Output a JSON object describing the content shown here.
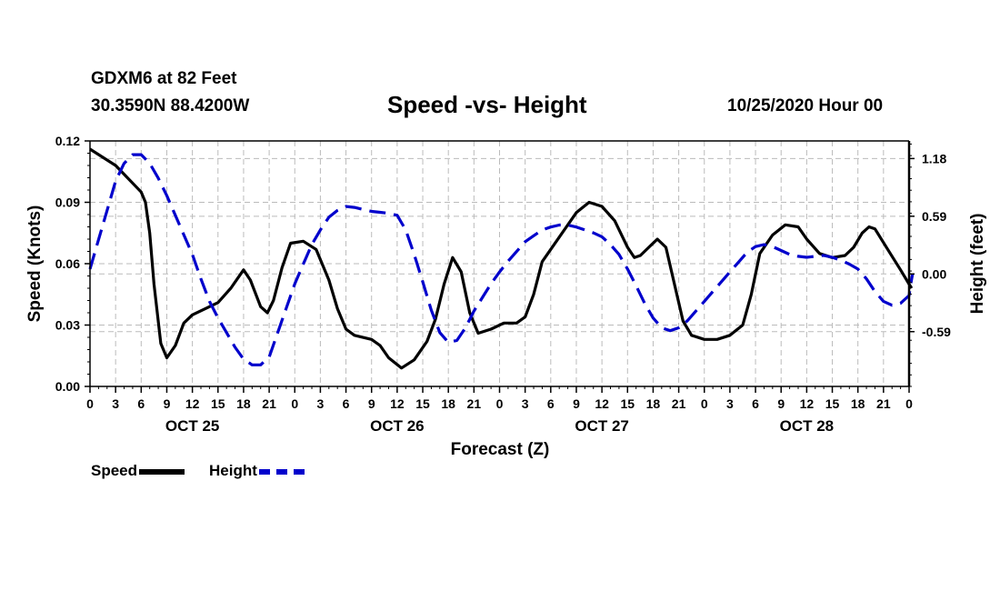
{
  "header": {
    "station": "GDXM6 at 82 Feet",
    "coords": "30.3590N 88.4200W",
    "title": "Speed -vs- Height",
    "run_time": "10/25/2020 Hour 00"
  },
  "colors": {
    "speed": "#000000",
    "height": "#0000cc",
    "grid": "#bbbbbb"
  },
  "chart_data": {
    "type": "line",
    "title": "Speed -vs- Height",
    "xlabel": "Forecast (Z)",
    "ylabel": "Speed (Knots)",
    "y2label": "Height (feet)",
    "xlim": [
      0,
      96
    ],
    "ylim": [
      0,
      0.12
    ],
    "y2lim": [
      -1.15,
      1.36
    ],
    "x_ticks": [
      0,
      3,
      6,
      9,
      12,
      15,
      18,
      21,
      24,
      27,
      30,
      33,
      36,
      39,
      42,
      45,
      48,
      51,
      54,
      57,
      60,
      63,
      66,
      69,
      72,
      75,
      78,
      81,
      84,
      87,
      90,
      93,
      96
    ],
    "x_tick_labels": [
      "0",
      "3",
      "6",
      "9",
      "12",
      "15",
      "18",
      "21",
      "0",
      "3",
      "6",
      "9",
      "12",
      "15",
      "18",
      "21",
      "0",
      "3",
      "6",
      "9",
      "12",
      "15",
      "18",
      "21",
      "0",
      "3",
      "6",
      "9",
      "12",
      "15",
      "18",
      "21",
      "0"
    ],
    "day_labels": [
      {
        "label": "OCT 25",
        "x": 12
      },
      {
        "label": "OCT 26",
        "x": 36
      },
      {
        "label": "OCT 27",
        "x": 60
      },
      {
        "label": "OCT 28",
        "x": 84
      }
    ],
    "y_ticks": [
      "0.00",
      "0.03",
      "0.06",
      "0.09",
      "0.12"
    ],
    "y_tick_values": [
      0,
      0.03,
      0.06,
      0.09,
      0.12
    ],
    "y2_ticks": [
      "-0.59",
      "0.00",
      "0.59",
      "1.18"
    ],
    "y2_tick_values": [
      -0.59,
      0,
      0.59,
      1.18
    ],
    "grid": true,
    "legend": "bottom-left",
    "series": [
      {
        "name": "Speed",
        "axis": "left",
        "style": "solid",
        "points": [
          [
            0,
            0.116
          ],
          [
            3,
            0.108
          ],
          [
            6,
            0.095
          ],
          [
            6.5,
            0.09
          ],
          [
            7,
            0.075
          ],
          [
            7.5,
            0.05
          ],
          [
            8.3,
            0.021
          ],
          [
            9,
            0.014
          ],
          [
            10,
            0.02
          ],
          [
            11,
            0.031
          ],
          [
            12,
            0.035
          ],
          [
            13,
            0.037
          ],
          [
            15,
            0.041
          ],
          [
            16.5,
            0.048
          ],
          [
            18,
            0.057
          ],
          [
            18.8,
            0.052
          ],
          [
            20,
            0.039
          ],
          [
            20.8,
            0.036
          ],
          [
            21.5,
            0.042
          ],
          [
            22.5,
            0.058
          ],
          [
            23.5,
            0.07
          ],
          [
            25,
            0.071
          ],
          [
            26.5,
            0.067
          ],
          [
            28,
            0.052
          ],
          [
            29,
            0.038
          ],
          [
            30,
            0.028
          ],
          [
            31,
            0.025
          ],
          [
            33,
            0.023
          ],
          [
            34,
            0.02
          ],
          [
            35,
            0.014
          ],
          [
            36.5,
            0.009
          ],
          [
            38,
            0.013
          ],
          [
            39.5,
            0.022
          ],
          [
            40.5,
            0.033
          ],
          [
            41.5,
            0.05
          ],
          [
            42.5,
            0.063
          ],
          [
            43.5,
            0.056
          ],
          [
            44.5,
            0.036
          ],
          [
            45.5,
            0.026
          ],
          [
            47,
            0.028
          ],
          [
            48.5,
            0.031
          ],
          [
            50,
            0.031
          ],
          [
            51,
            0.034
          ],
          [
            52,
            0.045
          ],
          [
            53,
            0.061
          ],
          [
            55,
            0.073
          ],
          [
            57,
            0.085
          ],
          [
            58.5,
            0.09
          ],
          [
            60,
            0.088
          ],
          [
            61.5,
            0.081
          ],
          [
            63,
            0.068
          ],
          [
            63.8,
            0.063
          ],
          [
            64.5,
            0.064
          ],
          [
            65.5,
            0.068
          ],
          [
            66.5,
            0.072
          ],
          [
            67.5,
            0.068
          ],
          [
            68.5,
            0.05
          ],
          [
            69.5,
            0.032
          ],
          [
            70.5,
            0.025
          ],
          [
            72,
            0.023
          ],
          [
            73.5,
            0.023
          ],
          [
            75,
            0.025
          ],
          [
            76.5,
            0.03
          ],
          [
            77.5,
            0.045
          ],
          [
            78.5,
            0.065
          ],
          [
            80,
            0.074
          ],
          [
            81.5,
            0.079
          ],
          [
            83,
            0.078
          ],
          [
            84,
            0.072
          ],
          [
            85.5,
            0.065
          ],
          [
            87,
            0.063
          ],
          [
            88.5,
            0.064
          ],
          [
            89.5,
            0.068
          ],
          [
            90.5,
            0.075
          ],
          [
            91.3,
            0.078
          ],
          [
            92,
            0.077
          ],
          [
            93.5,
            0.067
          ],
          [
            95,
            0.057
          ],
          [
            96,
            0.05
          ],
          [
            96.3,
            0.048
          ]
        ]
      },
      {
        "name": "Height",
        "axis": "right",
        "style": "dashed",
        "points": [
          [
            0,
            0.05
          ],
          [
            1,
            0.35
          ],
          [
            2,
            0.65
          ],
          [
            3,
            0.95
          ],
          [
            4,
            1.13
          ],
          [
            5,
            1.22
          ],
          [
            6,
            1.22
          ],
          [
            7,
            1.13
          ],
          [
            8,
            0.98
          ],
          [
            9,
            0.8
          ],
          [
            10,
            0.6
          ],
          [
            11,
            0.4
          ],
          [
            12,
            0.2
          ],
          [
            13,
            -0.05
          ],
          [
            14,
            -0.28
          ],
          [
            15,
            -0.45
          ],
          [
            16,
            -0.6
          ],
          [
            17,
            -0.75
          ],
          [
            18,
            -0.87
          ],
          [
            19,
            -0.93
          ],
          [
            20,
            -0.93
          ],
          [
            21,
            -0.85
          ],
          [
            22,
            -0.6
          ],
          [
            23,
            -0.35
          ],
          [
            24,
            -0.1
          ],
          [
            25,
            0.1
          ],
          [
            26,
            0.3
          ],
          [
            27,
            0.45
          ],
          [
            28,
            0.58
          ],
          [
            29,
            0.65
          ],
          [
            30,
            0.69
          ],
          [
            31,
            0.68
          ],
          [
            32,
            0.66
          ],
          [
            33,
            0.64
          ],
          [
            34,
            0.63
          ],
          [
            35,
            0.62
          ],
          [
            36,
            0.6
          ],
          [
            37,
            0.45
          ],
          [
            38,
            0.2
          ],
          [
            39,
            -0.08
          ],
          [
            40,
            -0.37
          ],
          [
            41,
            -0.6
          ],
          [
            42,
            -0.7
          ],
          [
            43,
            -0.68
          ],
          [
            44,
            -0.55
          ],
          [
            45,
            -0.38
          ],
          [
            46,
            -0.24
          ],
          [
            47,
            -0.1
          ],
          [
            48,
            0.02
          ],
          [
            49,
            0.13
          ],
          [
            50,
            0.23
          ],
          [
            51,
            0.33
          ],
          [
            52,
            0.39
          ],
          [
            53,
            0.45
          ],
          [
            54,
            0.48
          ],
          [
            55,
            0.5
          ],
          [
            56,
            0.5
          ],
          [
            57,
            0.48
          ],
          [
            58,
            0.45
          ],
          [
            59,
            0.42
          ],
          [
            60,
            0.38
          ],
          [
            61,
            0.3
          ],
          [
            62,
            0.2
          ],
          [
            63,
            0.05
          ],
          [
            64,
            -0.12
          ],
          [
            65,
            -0.3
          ],
          [
            66,
            -0.45
          ],
          [
            67,
            -0.55
          ],
          [
            68,
            -0.58
          ],
          [
            69,
            -0.55
          ],
          [
            70,
            -0.48
          ],
          [
            71,
            -0.38
          ],
          [
            72,
            -0.28
          ],
          [
            73,
            -0.18
          ],
          [
            74,
            -0.08
          ],
          [
            75,
            0.02
          ],
          [
            76,
            0.12
          ],
          [
            77,
            0.22
          ],
          [
            78,
            0.28
          ],
          [
            79,
            0.3
          ],
          [
            80,
            0.28
          ],
          [
            81,
            0.24
          ],
          [
            82,
            0.2
          ],
          [
            83,
            0.18
          ],
          [
            84,
            0.17
          ],
          [
            85,
            0.18
          ],
          [
            86,
            0.19
          ],
          [
            87,
            0.17
          ],
          [
            88,
            0.14
          ],
          [
            89,
            0.1
          ],
          [
            90,
            0.05
          ],
          [
            91,
            -0.05
          ],
          [
            92,
            -0.18
          ],
          [
            93,
            -0.28
          ],
          [
            94,
            -0.32
          ],
          [
            95,
            -0.3
          ],
          [
            96,
            -0.22
          ],
          [
            96.2,
            -0.1
          ],
          [
            96.4,
            0.0
          ]
        ]
      }
    ]
  },
  "legend": {
    "speed_label": "Speed",
    "height_label": "Height"
  }
}
